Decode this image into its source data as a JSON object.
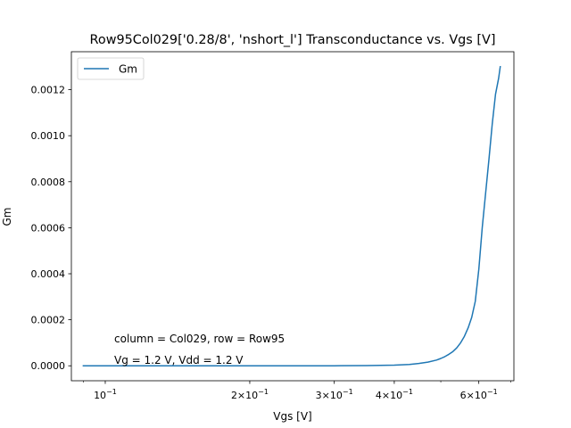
{
  "chart_data": {
    "type": "line",
    "title": "Row95Col029['0.28/8', 'nshort_l'] Transconductance vs. Vgs [V]",
    "xlabel": "Vgs [V]",
    "ylabel": "Gm",
    "xscale": "log",
    "xlim": [
      0.085,
      0.71
    ],
    "ylim": [
      -6.5e-05,
      0.001365
    ],
    "grid": false,
    "legend_position": "upper left",
    "x_ticks": [
      {
        "value": 0.1,
        "label": "10^-1",
        "base": "10",
        "exp": "−1"
      },
      {
        "value": 0.2,
        "label": "2×10^-1",
        "base": "2×10",
        "exp": "−1"
      },
      {
        "value": 0.3,
        "label": "3×10^-1",
        "base": "3×10",
        "exp": "−1"
      },
      {
        "value": 0.4,
        "label": "4×10^-1",
        "base": "4×10",
        "exp": "−1"
      },
      {
        "value": 0.6,
        "label": "6×10^-1",
        "base": "6×10",
        "exp": "−1"
      }
    ],
    "x_minor_ticks": [
      0.09,
      0.5,
      0.7
    ],
    "y_ticks": [
      {
        "value": 0.0,
        "label": "0.0000"
      },
      {
        "value": 0.0002,
        "label": "0.0002"
      },
      {
        "value": 0.0004,
        "label": "0.0004"
      },
      {
        "value": 0.0006,
        "label": "0.0006"
      },
      {
        "value": 0.0008,
        "label": "0.0008"
      },
      {
        "value": 0.001,
        "label": "0.0010"
      },
      {
        "value": 0.0012,
        "label": "0.0012"
      }
    ],
    "annotations": [
      {
        "text": "column = Col029, row = Row95"
      },
      {
        "text": "Vg = 1.2 V, Vdd = 1.2 V"
      }
    ],
    "series": [
      {
        "name": "Gm",
        "color": "#1f77b4",
        "x": [
          0.09,
          0.1,
          0.15,
          0.2,
          0.25,
          0.3,
          0.35,
          0.4,
          0.43,
          0.45,
          0.47,
          0.49,
          0.5,
          0.51,
          0.52,
          0.53,
          0.54,
          0.55,
          0.56,
          0.57,
          0.58,
          0.59,
          0.6,
          0.61,
          0.62,
          0.63,
          0.64,
          0.65,
          0.66,
          0.665
        ],
        "y": [
          0.0,
          0.0,
          0.0,
          0.0,
          0.0,
          0.0,
          1e-06,
          3e-06,
          6e-06,
          1e-05,
          1.6e-05,
          2.5e-05,
          3.2e-05,
          4e-05,
          5e-05,
          6.2e-05,
          7.8e-05,
          0.0001,
          0.000128,
          0.000165,
          0.00021,
          0.00028,
          0.00042,
          0.0006,
          0.00075,
          0.0009,
          0.00105,
          0.00118,
          0.00125,
          0.0013
        ]
      }
    ]
  }
}
